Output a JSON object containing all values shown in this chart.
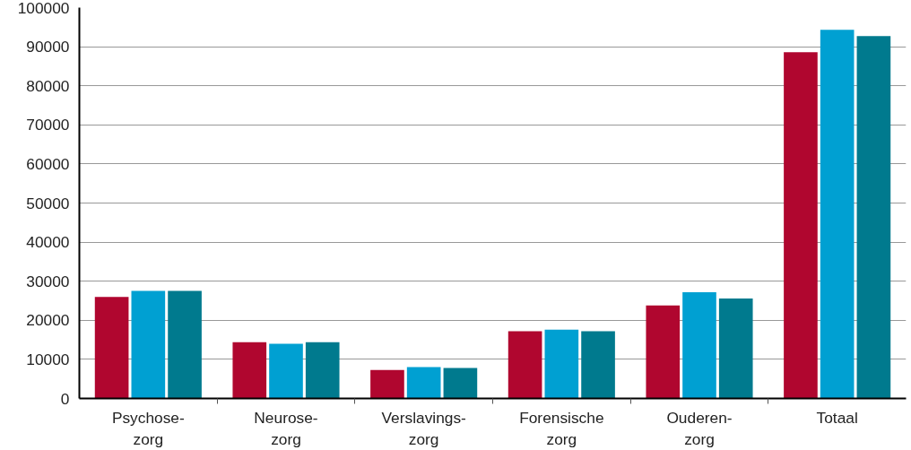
{
  "chart_data": {
    "type": "bar",
    "categories": [
      "Psychose-\nzorg",
      "Neurose-\nzorg",
      "Verslavings-\nzorg",
      "Forensische\nzorg",
      "Ouderen-\nzorg",
      "Totaal"
    ],
    "series": [
      {
        "color": "#b0062f",
        "values": [
          26000,
          14400,
          7300,
          17200,
          23800,
          88600
        ]
      },
      {
        "color": "#00a0d2",
        "values": [
          27500,
          14000,
          8000,
          17600,
          27200,
          94300
        ]
      },
      {
        "color": "#007a8e",
        "values": [
          27500,
          14400,
          7800,
          17200,
          25600,
          92700
        ]
      }
    ],
    "ylim": [
      0,
      100000
    ],
    "yticks": [
      0,
      10000,
      20000,
      30000,
      40000,
      50000,
      60000,
      70000,
      80000,
      90000,
      100000
    ],
    "grid": "y"
  }
}
